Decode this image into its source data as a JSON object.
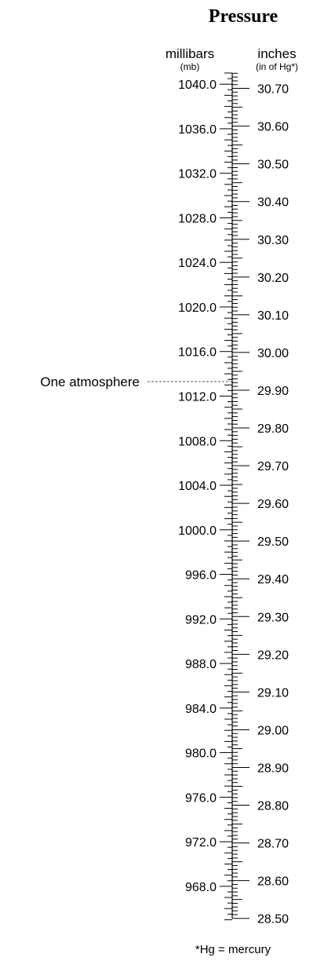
{
  "title": "Pressure",
  "left_scale": {
    "label": "millibars",
    "sublabel": "(mb)",
    "labeled_values": [
      "1040.0",
      "1036.0",
      "1032.0",
      "1028.0",
      "1024.0",
      "1020.0",
      "1016.0",
      "1012.0",
      "1008.0",
      "1004.0",
      "1000.0",
      "996.0",
      "992.0",
      "988.0",
      "984.0",
      "980.0",
      "976.0",
      "972.0",
      "968.0"
    ]
  },
  "right_scale": {
    "label": "inches",
    "sublabel": "(in of Hg*)",
    "labeled_values": [
      "30.70",
      "30.60",
      "30.50",
      "30.40",
      "30.30",
      "30.20",
      "30.10",
      "30.00",
      "29.90",
      "29.80",
      "29.70",
      "29.60",
      "29.50",
      "29.40",
      "29.30",
      "29.20",
      "29.10",
      "29.00",
      "28.90",
      "28.80",
      "28.70",
      "28.60",
      "28.50"
    ]
  },
  "annotation": {
    "label": "One atmosphere"
  },
  "footnote": "*Hg = mercury"
}
